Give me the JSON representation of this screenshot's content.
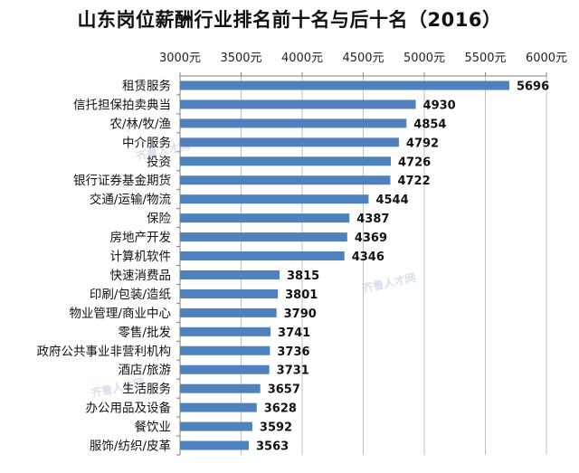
{
  "chart_data": {
    "type": "bar",
    "orientation": "horizontal",
    "title": "山东岗位薪酬行业排名前十名与后十名（2016）",
    "categories": [
      "租赁服务",
      "信托担保拍卖典当",
      "农/林/牧/渔",
      "中介服务",
      "投资",
      "银行证券基金期货",
      "交通/运输/物流",
      "保险",
      "房地产开发",
      "计算机软件",
      "快速消费品",
      "印刷/包装/造纸",
      "物业管理/商业中心",
      "零售/批发",
      "政府公共事业非营利机构",
      "酒店/旅游",
      "生活服务",
      "办公用品及设备",
      "餐饮业",
      "服饰/纺织/皮革"
    ],
    "values": [
      5696,
      4930,
      4854,
      4792,
      4726,
      4722,
      4544,
      4387,
      4369,
      4346,
      3815,
      3801,
      3790,
      3741,
      3736,
      3731,
      3657,
      3628,
      3592,
      3563
    ],
    "xlim": [
      3000,
      6000
    ],
    "xticks": [
      "3000元",
      "3500元",
      "4000元",
      "4500元",
      "5000元",
      "5500元",
      "6000元"
    ],
    "xtick_values": [
      3000,
      3500,
      4000,
      4500,
      5000,
      5500,
      6000
    ],
    "axis_position": "top",
    "grid": "vertical",
    "bar_color": "#4f81bd"
  },
  "watermark": "齐鲁人才网"
}
